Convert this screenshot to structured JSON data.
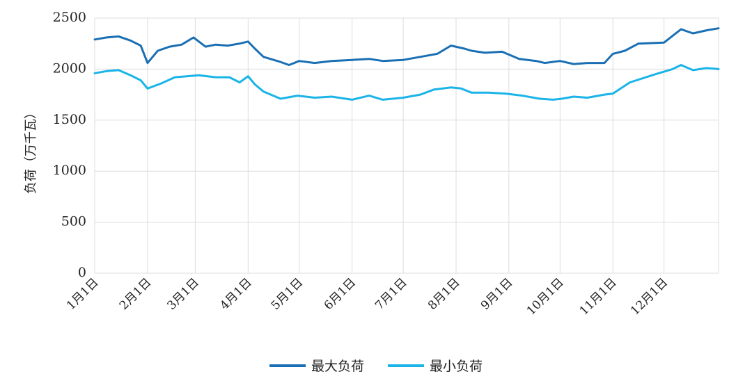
{
  "chart_data": {
    "type": "line",
    "title": "",
    "xlabel": "",
    "ylabel": "负荷（万千瓦）",
    "ylim": [
      0,
      2500
    ],
    "yticks": [
      0,
      500,
      1000,
      1500,
      2000,
      2500
    ],
    "categories": [
      "1月1日",
      "2月1日",
      "3月1日",
      "4月1日",
      "5月1日",
      "6月1日",
      "7月1日",
      "8月1日",
      "9月1日",
      "10月1日",
      "11月1日",
      "12月1日"
    ],
    "legend_position": "bottom",
    "grid": "vertical",
    "series": [
      {
        "name": "最大负荷",
        "color": "#1a6fb4",
        "x": [
          1,
          8,
          15,
          22,
          28,
          32,
          38,
          45,
          52,
          59,
          66,
          72,
          79,
          86,
          91,
          95,
          100,
          110,
          115,
          121,
          130,
          140,
          152,
          162,
          170,
          182,
          192,
          202,
          210,
          218,
          222,
          230,
          240,
          250,
          260,
          265,
          274,
          282,
          290,
          300,
          305,
          312,
          320,
          335,
          345,
          352,
          360,
          367
        ],
        "values": [
          2290,
          2310,
          2320,
          2280,
          2230,
          2060,
          2180,
          2220,
          2240,
          2310,
          2220,
          2240,
          2230,
          2250,
          2270,
          2200,
          2120,
          2070,
          2040,
          2080,
          2060,
          2080,
          2090,
          2100,
          2080,
          2090,
          2120,
          2150,
          2230,
          2200,
          2180,
          2160,
          2170,
          2100,
          2080,
          2060,
          2080,
          2050,
          2060,
          2060,
          2150,
          2180,
          2250,
          2260,
          2390,
          2350,
          2380,
          2400
        ]
      },
      {
        "name": "最小负荷",
        "color": "#1ab4e8",
        "x": [
          1,
          8,
          15,
          22,
          28,
          32,
          40,
          48,
          55,
          62,
          72,
          80,
          86,
          91,
          95,
          100,
          110,
          120,
          130,
          140,
          152,
          162,
          170,
          182,
          192,
          200,
          210,
          216,
          222,
          232,
          242,
          252,
          262,
          270,
          275,
          282,
          290,
          300,
          305,
          315,
          330,
          340,
          345,
          352,
          360,
          367
        ],
        "values": [
          1960,
          1980,
          1990,
          1940,
          1890,
          1810,
          1860,
          1920,
          1930,
          1940,
          1920,
          1920,
          1870,
          1930,
          1850,
          1780,
          1710,
          1740,
          1720,
          1730,
          1700,
          1740,
          1700,
          1720,
          1750,
          1800,
          1820,
          1810,
          1770,
          1770,
          1760,
          1740,
          1710,
          1700,
          1710,
          1730,
          1720,
          1750,
          1760,
          1870,
          1950,
          2000,
          2040,
          1990,
          2010,
          2000
        ]
      }
    ]
  }
}
